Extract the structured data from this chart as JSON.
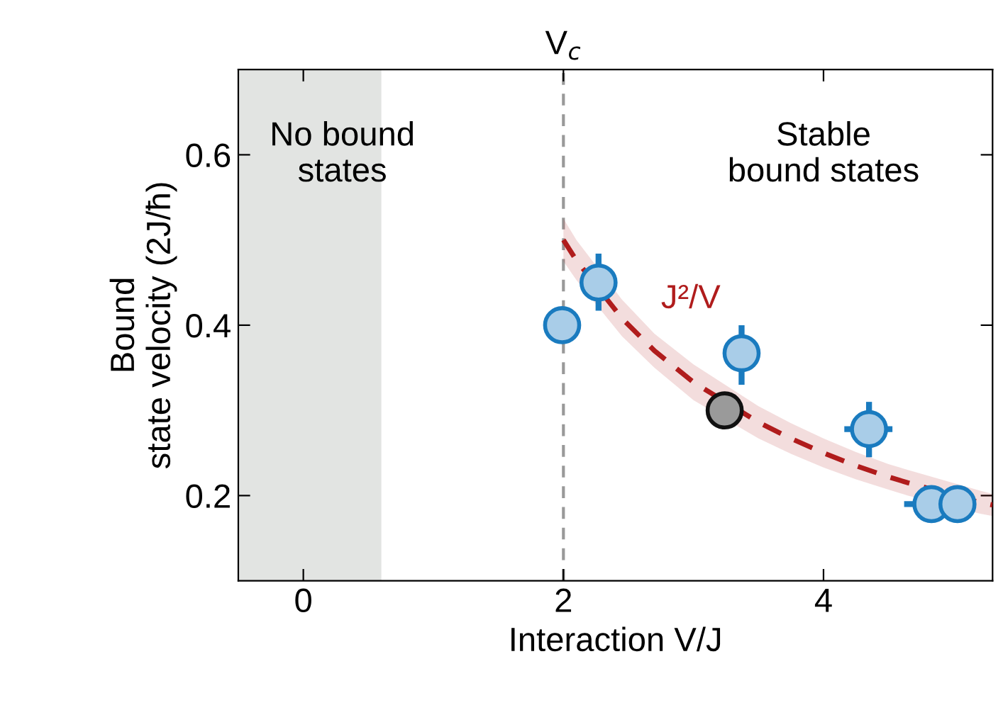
{
  "chart_data": {
    "type": "scatter",
    "xlabel": "Interaction V/J",
    "ylabel": "Bound\nstate velocity (2J/ħ)",
    "xlim": [
      -0.5,
      5.3
    ],
    "ylim": [
      0.1,
      0.7
    ],
    "xticks": [
      0,
      2,
      4
    ],
    "yticks": [
      0.2,
      0.4,
      0.6
    ],
    "grid": false,
    "legend": false,
    "marker": "circle",
    "series": [
      {
        "type": "line",
        "name": "J²/V",
        "color": "#b01c1c",
        "line_style": "dashed",
        "marker": "none",
        "x": [
          2.0,
          2.1,
          2.45,
          2.7,
          3.0,
          3.5,
          3.75,
          4.0,
          4.25,
          4.5,
          4.65,
          5.2,
          5.3
        ],
        "values": [
          0.5,
          0.476,
          0.408,
          0.37,
          0.333,
          0.286,
          0.267,
          0.25,
          0.235,
          0.222,
          0.215,
          0.192,
          0.189
        ],
        "lower": [
          0.475,
          0.453,
          0.387,
          0.35,
          0.312,
          0.267,
          0.249,
          0.233,
          0.219,
          0.207,
          0.2,
          0.179,
          0.176
        ],
        "upper": [
          0.525,
          0.5,
          0.43,
          0.39,
          0.354,
          0.305,
          0.285,
          0.267,
          0.251,
          0.237,
          0.23,
          0.206,
          0.202
        ]
      },
      {
        "color": "#a9cde8",
        "x": [
          1.99,
          2.27,
          3.37,
          4.35,
          4.83,
          5.03
        ],
        "values": [
          0.4,
          0.45,
          0.367,
          0.278,
          0.19,
          0.19
        ],
        "errors": [
          null,
          [
            0.417,
            0.484
          ],
          [
            0.33,
            0.4
          ],
          [
            0.245,
            0.31
          ],
          null,
          null
        ],
        "xerrors": [
          null,
          null,
          null,
          [
            4.16,
            4.53
          ],
          [
            4.62,
            4.83
          ],
          [
            5.03,
            5.16
          ]
        ]
      },
      {
        "color": "#9a9a9a",
        "x": [
          3.24
        ],
        "values": [
          0.3
        ]
      }
    ],
    "ref_lines": [
      {
        "axis": "x",
        "value": 2,
        "label": "V$_{c}$",
        "color": "#999999",
        "line_style": "dashed"
      }
    ],
    "bands": [
      {
        "axis": "x",
        "from": -0.5,
        "to": 0.6,
        "color": "#e2e4e2"
      }
    ],
    "annotations": [
      "No bound\nstates",
      "Stable\nbound states"
    ]
  }
}
